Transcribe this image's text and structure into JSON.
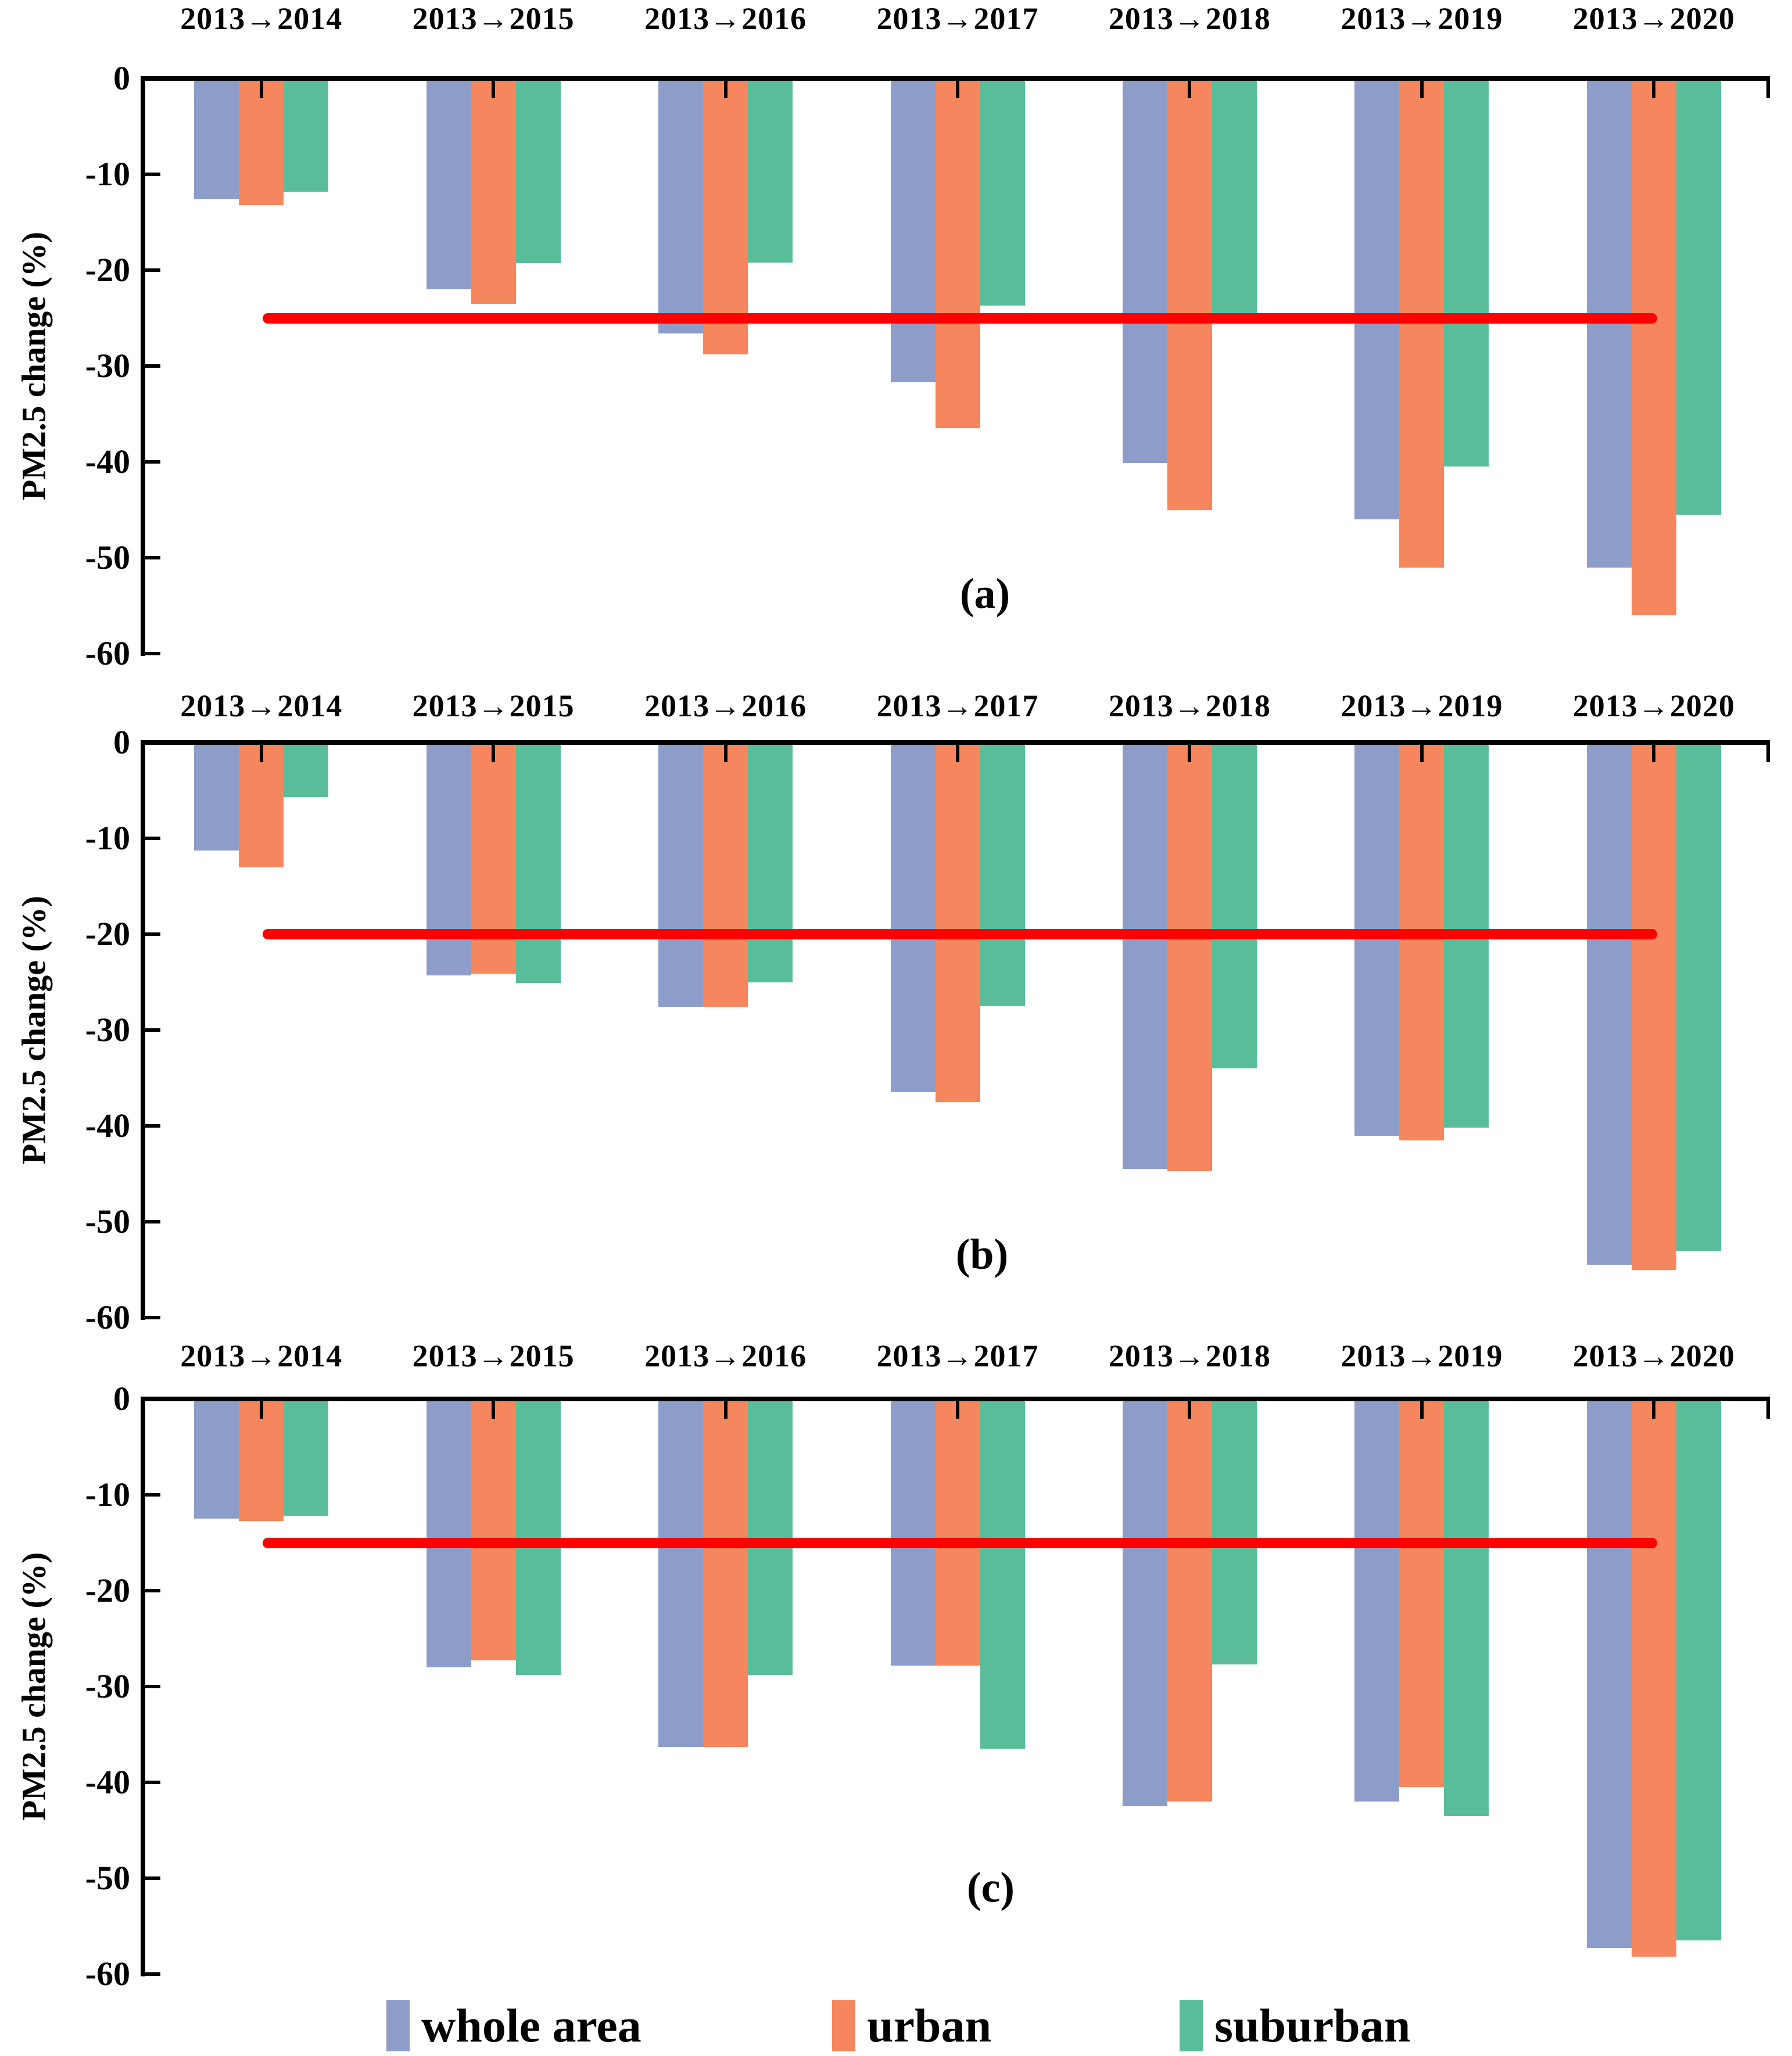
{
  "chart_data": {
    "type": "bar",
    "title": "",
    "xlabel": "",
    "ylabel": "PM2.5 change (%)",
    "ylim": [
      -60,
      0
    ],
    "yticks": [
      "0",
      "-10",
      "-20",
      "-30",
      "-40",
      "-50",
      "-60"
    ],
    "ytick_values": [
      0,
      -10,
      -20,
      -30,
      -40,
      -50,
      -60
    ],
    "grid": "off",
    "legend_position": "bottom",
    "categories": [
      "2013→2014",
      "2013→2015",
      "2013→2016",
      "2013→2017",
      "2013→2018",
      "2013→2019",
      "2013→2020"
    ],
    "series_names": [
      "whole area",
      "urban",
      "suburban"
    ],
    "colors": {
      "whole_area": "#8C9DCA",
      "urban": "#F6865D",
      "suburban": "#5ABD99",
      "ref_line": "#FF0000",
      "axis": "#000000",
      "background": "#FFFFFF"
    },
    "panels": [
      {
        "label": "(a)",
        "ref_line_value": -25,
        "series": [
          {
            "name": "whole area",
            "values": [
              -12.6,
              -22.0,
              -26.6,
              -31.7,
              -40.1,
              -46.0,
              -51.0
            ]
          },
          {
            "name": "urban",
            "values": [
              -13.2,
              -23.5,
              -28.8,
              -36.5,
              -45.0,
              -51.0,
              -56.0
            ]
          },
          {
            "name": "suburban",
            "values": [
              -11.8,
              -19.3,
              -19.2,
              -23.7,
              -24.9,
              -40.5,
              -45.5
            ]
          }
        ]
      },
      {
        "label": "(b)",
        "ref_line_value": -20,
        "series": [
          {
            "name": "whole area",
            "values": [
              -11.3,
              -24.3,
              -27.6,
              -36.5,
              -44.5,
              -41.0,
              -54.5
            ]
          },
          {
            "name": "urban",
            "values": [
              -13.0,
              -24.1,
              -27.6,
              -37.5,
              -44.7,
              -41.5,
              -55.0
            ]
          },
          {
            "name": "suburban",
            "values": [
              -5.7,
              -25.1,
              -25.0,
              -27.5,
              -34.0,
              -40.2,
              -53.0
            ]
          }
        ]
      },
      {
        "label": "(c)",
        "ref_line_value": -15,
        "series": [
          {
            "name": "whole area",
            "values": [
              -12.5,
              -28.0,
              -36.3,
              -27.8,
              -42.5,
              -42.0,
              -57.3
            ]
          },
          {
            "name": "urban",
            "values": [
              -12.7,
              -27.3,
              -36.3,
              -27.8,
              -42.0,
              -40.5,
              -58.2
            ]
          },
          {
            "name": "suburban",
            "values": [
              -12.2,
              -28.8,
              -28.8,
              -36.5,
              -27.7,
              -43.5,
              -56.5
            ]
          }
        ]
      }
    ],
    "legend": [
      {
        "label": "whole area",
        "color": "#8C9DCA"
      },
      {
        "label": "urban",
        "color": "#F6865D"
      },
      {
        "label": "suburban",
        "color": "#5ABD99"
      }
    ]
  }
}
